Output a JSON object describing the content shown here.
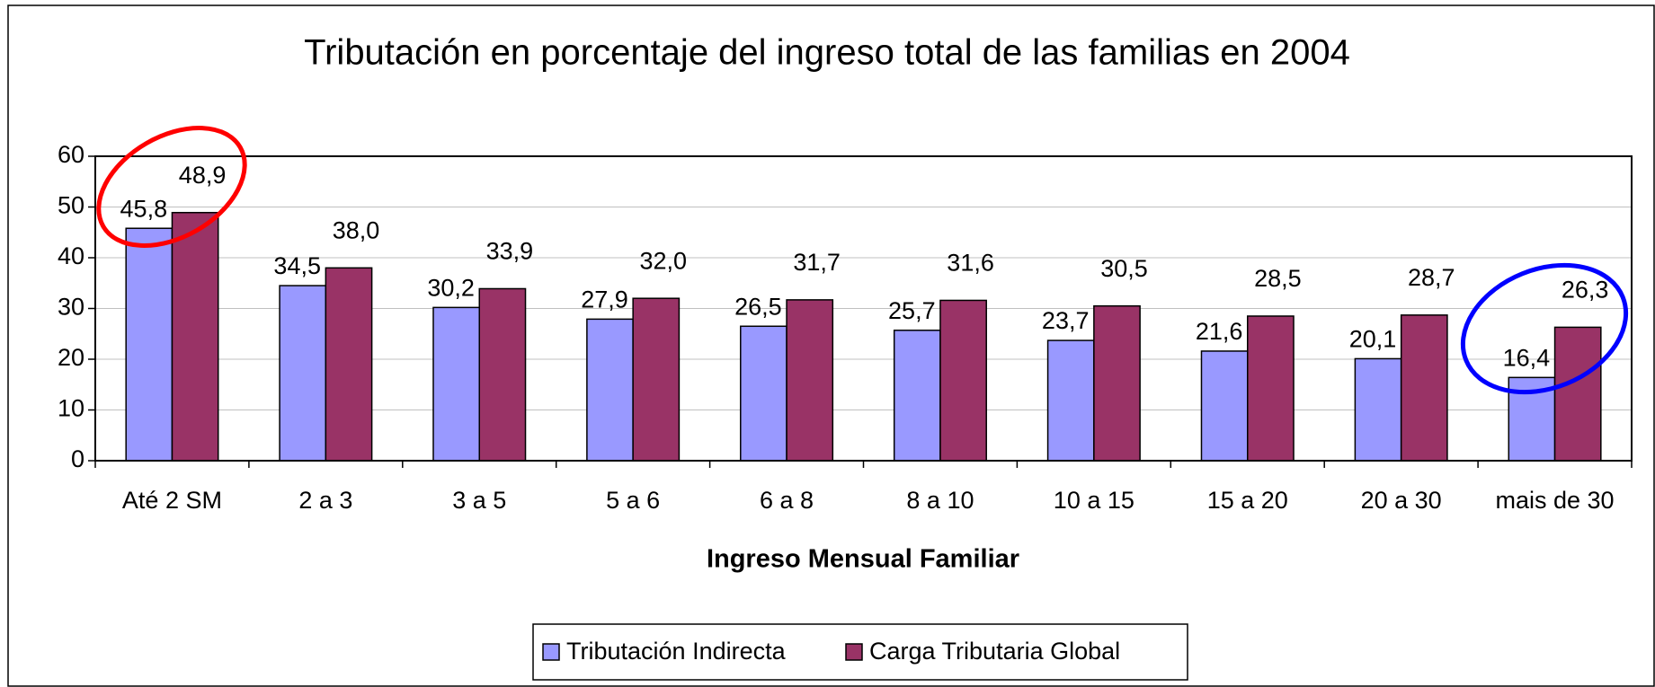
{
  "chart_data": {
    "type": "bar",
    "title": "Tributación en porcentaje del ingreso total de las familias en 2004",
    "x_label": "Ingreso Mensual Familiar",
    "categories": [
      "Até 2 SM",
      "2 a 3",
      "3 a 5",
      "5 a 6",
      "6 a 8",
      "8 a 10",
      "10 a 15",
      "15 a 20",
      "20 a 30",
      "mais de 30"
    ],
    "series": [
      {
        "name": "Tributación Indirecta",
        "color": "#9999ff",
        "values": [
          45.8,
          34.5,
          30.2,
          27.9,
          26.5,
          25.7,
          23.7,
          21.6,
          20.1,
          16.4
        ],
        "value_labels": [
          "45,8",
          "34,5",
          "30,2",
          "27,9",
          "26,5",
          "25,7",
          "23,7",
          "21,6",
          "20,1",
          "16,4"
        ]
      },
      {
        "name": "Carga Tributaria Global",
        "color": "#993366",
        "values": [
          48.9,
          38.0,
          33.9,
          32.0,
          31.7,
          31.6,
          30.5,
          28.5,
          28.7,
          26.3
        ],
        "value_labels": [
          "48,9",
          "38,0",
          "33,9",
          "32,0",
          "31,7",
          "31,6",
          "30,5",
          "28,5",
          "28,7",
          "26,3"
        ]
      }
    ],
    "ylim": [
      0,
      60
    ],
    "yticks": [
      0,
      10,
      20,
      30,
      40,
      50,
      60
    ],
    "grid": true,
    "legend": "bottom"
  }
}
